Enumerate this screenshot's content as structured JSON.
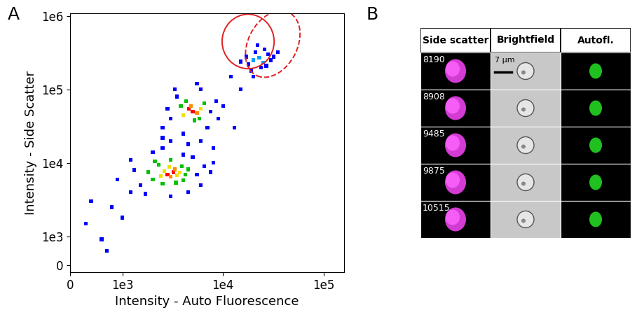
{
  "panel_labels": [
    "A",
    "B"
  ],
  "chart_data": {
    "type": "scatter",
    "x_label": "Intensity - Auto Fluorescence",
    "y_label": "Intensity - Side Scatter",
    "log": true,
    "grid": false,
    "marker": "square",
    "x": [
      2800,
      3200,
      3000,
      2600,
      3500,
      2400,
      3300,
      2900,
      3700,
      2000,
      4200,
      2300,
      3900,
      2500,
      3400,
      1800,
      4500,
      2100,
      3000,
      4000,
      1500,
      5500,
      6500,
      1300,
      2000,
      4000,
      6000,
      1700,
      3000,
      4500,
      7500,
      1200,
      5000,
      2500,
      8000,
      900,
      5000,
      4600,
      5500,
      4800,
      4000,
      6000,
      4300,
      5800,
      3800,
      6500,
      5200,
      3000,
      7500,
      3500,
      8500,
      2500,
      6000,
      9000,
      4000,
      2800,
      7000,
      5500,
      3300,
      3000,
      4500,
      6000,
      2500,
      8000,
      20000,
      23000,
      25000,
      18000,
      28000,
      21000,
      30000,
      17000,
      24000,
      26000,
      19000,
      32000,
      22000,
      27000,
      35000,
      15000,
      12000,
      15000,
      20000,
      10000,
      13000,
      300,
      600,
      800,
      1000,
      400,
      1200,
      700
    ],
    "values": [
      7000,
      7500,
      6500,
      7800,
      6800,
      6600,
      8200,
      8800,
      7400,
      6000,
      7000,
      9500,
      9000,
      5200,
      5400,
      7500,
      8200,
      10500,
      11000,
      5800,
      5000,
      7000,
      9000,
      8000,
      14000,
      13000,
      5000,
      3800,
      3500,
      4000,
      7500,
      11000,
      12000,
      16000,
      10000,
      6000,
      50000,
      55000,
      48000,
      60000,
      45000,
      55000,
      70000,
      40000,
      60000,
      65000,
      38000,
      40000,
      50000,
      80000,
      70000,
      30000,
      100000,
      40000,
      25000,
      55000,
      30000,
      120000,
      100000,
      20000,
      18000,
      20000,
      22000,
      16000,
      250000,
      270000,
      230000,
      220000,
      300000,
      320000,
      250000,
      280000,
      200000,
      350000,
      180000,
      280000,
      400000,
      210000,
      320000,
      240000,
      150000,
      100000,
      150000,
      60000,
      30000,
      1500,
      900,
      2500,
      1800,
      3000,
      4000,
      500
    ],
    "colors": [
      "#ff0000",
      "#ff0000",
      "#ff8c00",
      "#f0e000",
      "#f0e000",
      "#f0e000",
      "#ff8c00",
      "#f0e000",
      "#f0e000",
      "#00c000",
      "#00c000",
      "#00c000",
      "#00c000",
      "#00c000",
      "#00c000",
      "#00c000",
      "#00c000",
      "#00c000",
      "#00c000",
      "#00c000",
      "#0000ff",
      "#0000ff",
      "#0000ff",
      "#0000ff",
      "#0000ff",
      "#0000ff",
      "#0000ff",
      "#0000ff",
      "#0000ff",
      "#0000ff",
      "#0000ff",
      "#0000ff",
      "#0000ff",
      "#0000ff",
      "#0000ff",
      "#0000ff",
      "#ff0000",
      "#ff0000",
      "#ff8c00",
      "#ff8c00",
      "#f0e000",
      "#f0e000",
      "#00c000",
      "#00c000",
      "#00c000",
      "#00c000",
      "#00c000",
      "#0000ff",
      "#0000ff",
      "#0000ff",
      "#0000ff",
      "#0000ff",
      "#0000ff",
      "#0000ff",
      "#0000ff",
      "#0000ff",
      "#0000ff",
      "#0000ff",
      "#0000ff",
      "#0000ff",
      "#0000ff",
      "#0000ff",
      "#0000ff",
      "#0000ff",
      "#00a0ff",
      "#00a0ff",
      "#00a0ff",
      "#0000ff",
      "#0000ff",
      "#0000ff",
      "#0000ff",
      "#0000ff",
      "#0000ff",
      "#0000ff",
      "#0000ff",
      "#0000ff",
      "#0000ff",
      "#0000ff",
      "#0000ff",
      "#0000ff",
      "#0000ff",
      "#0000ff",
      "#0000ff",
      "#0000ff",
      "#0000ff",
      "#0000ff",
      "#0000ff",
      "#0000ff",
      "#0000ff",
      "#0000ff",
      "#0000ff",
      "#0000ff"
    ],
    "xlim": [
      0,
      160000
    ],
    "ylim": [
      -250,
      1100000
    ],
    "xticks": [
      0,
      {
        "value": 1000,
        "label": "1e3"
      },
      {
        "value": 10000,
        "label": "1e4"
      },
      {
        "value": 100000,
        "label": "1e5"
      }
    ],
    "yticks": [
      0,
      {
        "value": 1000,
        "label": "1e3"
      },
      {
        "value": 10000,
        "label": "1e4"
      },
      {
        "value": 100000,
        "label": "1e5"
      },
      {
        "value": 1000000,
        "label": "1e6"
      }
    ]
  },
  "image_table": {
    "columns": [
      "Side scatter",
      "Brightfield",
      "Autofl."
    ],
    "rows": [
      8190,
      8908,
      9485,
      9875,
      10515
    ],
    "scale_bar": "7 μm"
  }
}
